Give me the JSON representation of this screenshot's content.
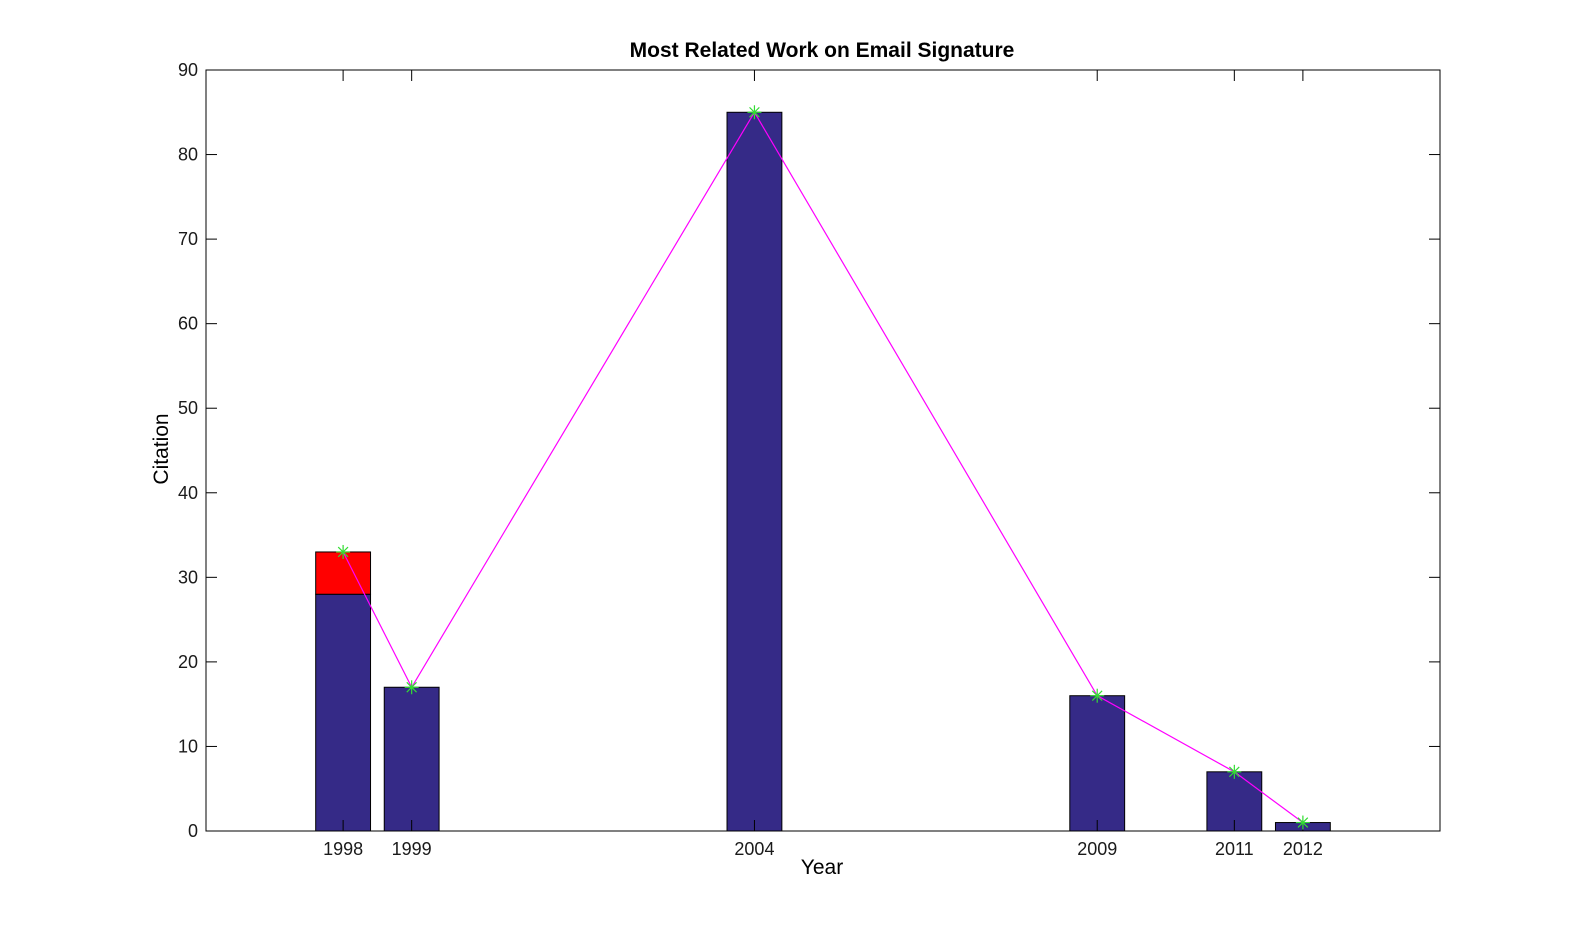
{
  "chart_data": {
    "type": "bar",
    "title": "Most Related Work on Email Signature",
    "xlabel": "Year",
    "ylabel": "Citation",
    "xlim": [
      1996,
      2014
    ],
    "ylim": [
      0,
      90
    ],
    "yticks": [
      0,
      10,
      20,
      30,
      40,
      50,
      60,
      70,
      80,
      90
    ],
    "xticks": [
      1998,
      1999,
      2004,
      2009,
      2011,
      2012
    ],
    "grid": false,
    "legend": "none",
    "stacked": true,
    "bar_width_years": 0.8,
    "series": [
      {
        "values": [
          28,
          17,
          85,
          16,
          7,
          1
        ],
        "color": "#352a87"
      },
      {
        "values": [
          5,
          0,
          0,
          0,
          0,
          0
        ],
        "color": "#ff0000"
      }
    ],
    "line": {
      "values": [
        33,
        17,
        85,
        16,
        7,
        1
      ],
      "color": "#ff00ff",
      "marker": "*",
      "marker_color": "#33dd33"
    }
  }
}
